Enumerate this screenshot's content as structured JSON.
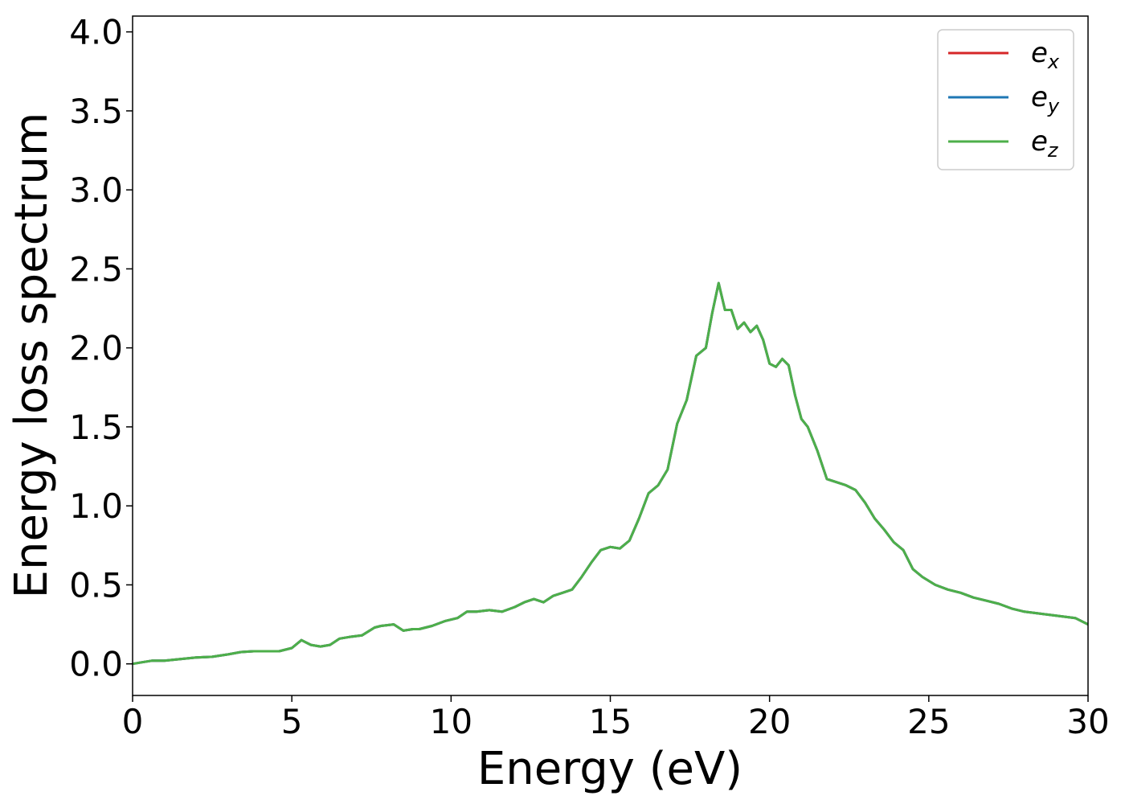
{
  "chart_data": {
    "type": "line",
    "xlabel": "Energy (eV)",
    "ylabel": "Energy loss spectrum",
    "xlim": [
      0,
      30
    ],
    "ylim": [
      -0.2,
      4.1
    ],
    "xticks": [
      0,
      5,
      10,
      15,
      20,
      25,
      30
    ],
    "xtick_labels": [
      "0",
      "5",
      "10",
      "15",
      "20",
      "25",
      "30"
    ],
    "yticks": [
      0.0,
      0.5,
      1.0,
      1.5,
      2.0,
      2.5,
      3.0,
      3.5,
      4.0
    ],
    "ytick_labels": [
      "0.0",
      "0.5",
      "1.0",
      "1.5",
      "2.0",
      "2.5",
      "3.0",
      "3.5",
      "4.0"
    ],
    "grid": false,
    "legend_position": "top-right",
    "x": [
      0,
      0.3,
      0.6,
      1.0,
      1.5,
      2.0,
      2.5,
      3.0,
      3.4,
      3.8,
      4.2,
      4.6,
      5.0,
      5.3,
      5.6,
      5.9,
      6.2,
      6.5,
      6.8,
      7.2,
      7.6,
      7.8,
      8.2,
      8.5,
      8.8,
      9.0,
      9.4,
      9.8,
      10.2,
      10.5,
      10.8,
      11.2,
      11.6,
      12.0,
      12.3,
      12.6,
      12.9,
      13.2,
      13.5,
      13.8,
      14.1,
      14.4,
      14.7,
      15.0,
      15.3,
      15.6,
      15.9,
      16.2,
      16.5,
      16.8,
      17.1,
      17.4,
      17.7,
      18.0,
      18.2,
      18.4,
      18.6,
      18.8,
      19.0,
      19.2,
      19.4,
      19.6,
      19.8,
      20.0,
      20.2,
      20.4,
      20.6,
      20.8,
      21.0,
      21.2,
      21.5,
      21.8,
      22.1,
      22.4,
      22.7,
      23.0,
      23.3,
      23.6,
      23.9,
      24.2,
      24.5,
      24.8,
      25.2,
      25.6,
      26.0,
      26.4,
      26.8,
      27.2,
      27.6,
      28.0,
      28.4,
      28.8,
      29.2,
      29.6,
      30.0
    ],
    "series": [
      {
        "name": "e_x",
        "label_main": "e",
        "label_sub": "x",
        "color": "#d62728",
        "y": [
          0.0,
          0.01,
          0.02,
          0.02,
          0.03,
          0.04,
          0.045,
          0.06,
          0.075,
          0.08,
          0.08,
          0.08,
          0.1,
          0.15,
          0.12,
          0.11,
          0.12,
          0.16,
          0.17,
          0.18,
          0.23,
          0.24,
          0.25,
          0.21,
          0.22,
          0.22,
          0.24,
          0.27,
          0.29,
          0.33,
          0.33,
          0.34,
          0.33,
          0.36,
          0.39,
          0.41,
          0.39,
          0.43,
          0.45,
          0.47,
          0.55,
          0.64,
          0.72,
          0.74,
          0.73,
          0.78,
          0.92,
          1.08,
          1.13,
          1.23,
          1.52,
          1.67,
          1.95,
          2.0,
          2.22,
          2.41,
          2.24,
          2.24,
          2.12,
          2.16,
          2.1,
          2.14,
          2.05,
          1.9,
          1.88,
          1.93,
          1.89,
          1.7,
          1.55,
          1.5,
          1.35,
          1.17,
          1.15,
          1.13,
          1.1,
          1.02,
          0.92,
          0.85,
          0.77,
          0.72,
          0.6,
          0.55,
          0.5,
          0.47,
          0.45,
          0.42,
          0.4,
          0.38,
          0.35,
          0.33,
          0.32,
          0.31,
          0.3,
          0.29,
          0.25
        ]
      },
      {
        "name": "e_y",
        "label_main": "e",
        "label_sub": "y",
        "color": "#1f77b4",
        "y": [
          0.0,
          0.01,
          0.02,
          0.02,
          0.03,
          0.04,
          0.045,
          0.06,
          0.075,
          0.08,
          0.08,
          0.08,
          0.1,
          0.15,
          0.12,
          0.11,
          0.12,
          0.16,
          0.17,
          0.18,
          0.23,
          0.24,
          0.25,
          0.21,
          0.22,
          0.22,
          0.24,
          0.27,
          0.29,
          0.33,
          0.33,
          0.34,
          0.33,
          0.36,
          0.39,
          0.41,
          0.39,
          0.43,
          0.45,
          0.47,
          0.55,
          0.64,
          0.72,
          0.74,
          0.73,
          0.78,
          0.92,
          1.08,
          1.13,
          1.23,
          1.52,
          1.67,
          1.95,
          2.0,
          2.22,
          2.41,
          2.24,
          2.24,
          2.12,
          2.16,
          2.1,
          2.14,
          2.05,
          1.9,
          1.88,
          1.93,
          1.89,
          1.7,
          1.55,
          1.5,
          1.35,
          1.17,
          1.15,
          1.13,
          1.1,
          1.02,
          0.92,
          0.85,
          0.77,
          0.72,
          0.6,
          0.55,
          0.5,
          0.47,
          0.45,
          0.42,
          0.4,
          0.38,
          0.35,
          0.33,
          0.32,
          0.31,
          0.3,
          0.29,
          0.25
        ]
      },
      {
        "name": "e_z",
        "label_main": "e",
        "label_sub": "z",
        "color": "#4daf4a",
        "y": [
          0.0,
          0.01,
          0.02,
          0.02,
          0.03,
          0.04,
          0.045,
          0.06,
          0.075,
          0.08,
          0.08,
          0.08,
          0.1,
          0.15,
          0.12,
          0.11,
          0.12,
          0.16,
          0.17,
          0.18,
          0.23,
          0.24,
          0.25,
          0.21,
          0.22,
          0.22,
          0.24,
          0.27,
          0.29,
          0.33,
          0.33,
          0.34,
          0.33,
          0.36,
          0.39,
          0.41,
          0.39,
          0.43,
          0.45,
          0.47,
          0.55,
          0.64,
          0.72,
          0.74,
          0.73,
          0.78,
          0.92,
          1.08,
          1.13,
          1.23,
          1.52,
          1.67,
          1.95,
          2.0,
          2.22,
          2.41,
          2.24,
          2.24,
          2.12,
          2.16,
          2.1,
          2.14,
          2.05,
          1.9,
          1.88,
          1.93,
          1.89,
          1.7,
          1.55,
          1.5,
          1.35,
          1.17,
          1.15,
          1.13,
          1.1,
          1.02,
          0.92,
          0.85,
          0.77,
          0.72,
          0.6,
          0.55,
          0.5,
          0.47,
          0.45,
          0.42,
          0.4,
          0.38,
          0.35,
          0.33,
          0.32,
          0.31,
          0.3,
          0.29,
          0.25
        ]
      }
    ]
  }
}
